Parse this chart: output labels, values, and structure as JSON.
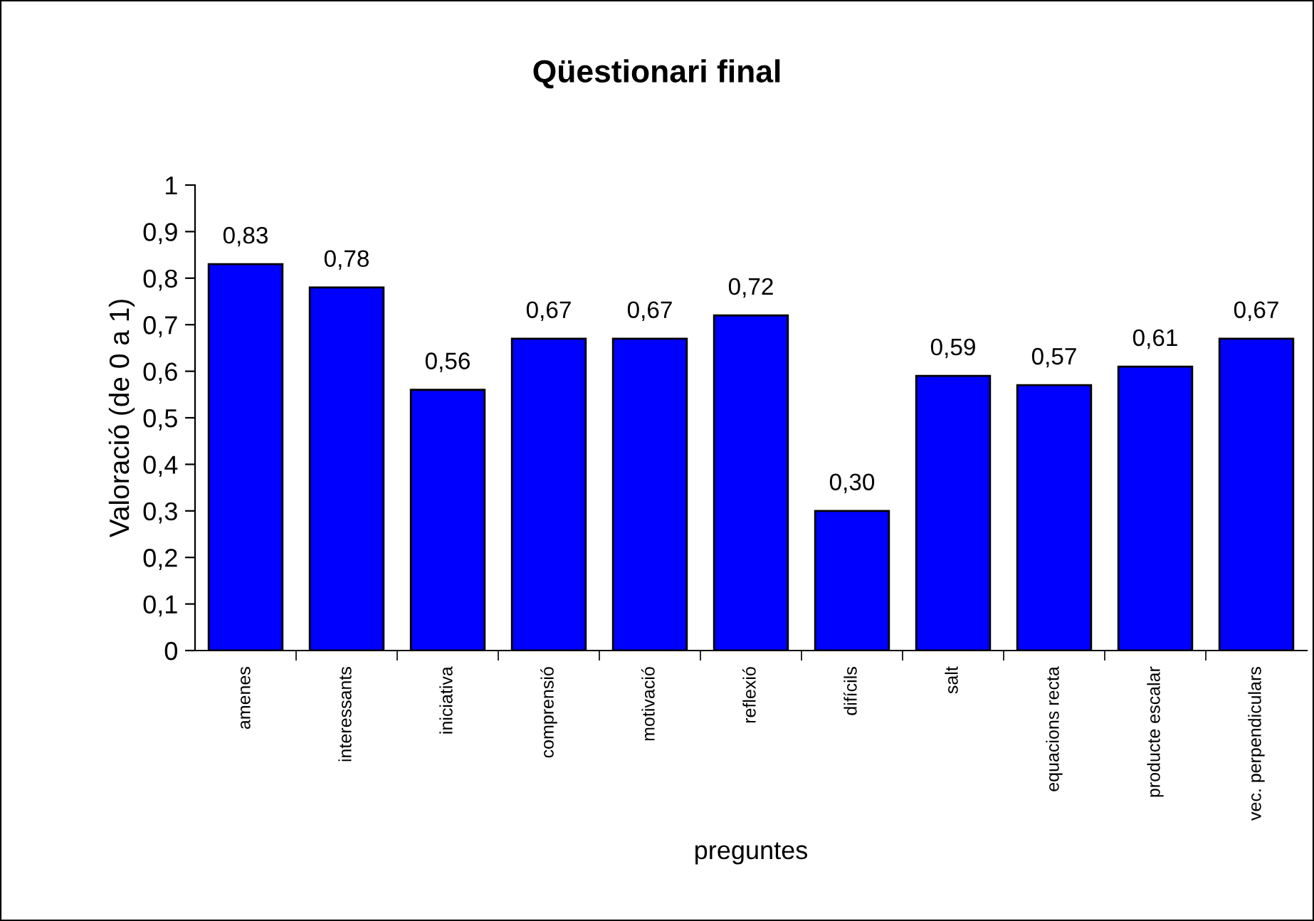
{
  "chart_data": {
    "type": "bar",
    "title": "Qüestionari final",
    "xlabel": "preguntes",
    "ylabel": "Valoració (de 0 a 1)",
    "categories": [
      "amenes",
      "interessants",
      "iniciativa",
      "comprensió",
      "motivació",
      "reflexió",
      "difícils",
      "salt",
      "equacions recta",
      "producte escalar",
      "vec. perpendiculars"
    ],
    "values": [
      0.83,
      0.78,
      0.56,
      0.67,
      0.67,
      0.72,
      0.3,
      0.59,
      0.57,
      0.61,
      0.67
    ],
    "value_labels": [
      "0,83",
      "0,78",
      "0,56",
      "0,67",
      "0,67",
      "0,72",
      "0,30",
      "0,59",
      "0,57",
      "0,61",
      "0,67"
    ],
    "color": "#0000ff",
    "ylim": [
      0,
      1
    ],
    "yticks": [
      0,
      {
        "value": 0.1,
        "label": "0,1"
      },
      {
        "value": 0.2,
        "label": "0,2"
      },
      {
        "value": 0.3,
        "label": "0,3"
      },
      {
        "value": 0.4,
        "label": "0,4"
      },
      {
        "value": 0.5,
        "label": "0,5"
      },
      {
        "value": 0.6,
        "label": "0,6"
      },
      {
        "value": 0.7,
        "label": "0,7"
      },
      {
        "value": 0.8,
        "label": "0,8"
      },
      {
        "value": 0.9,
        "label": "0,9"
      },
      1
    ],
    "grid": false,
    "legend": false
  }
}
